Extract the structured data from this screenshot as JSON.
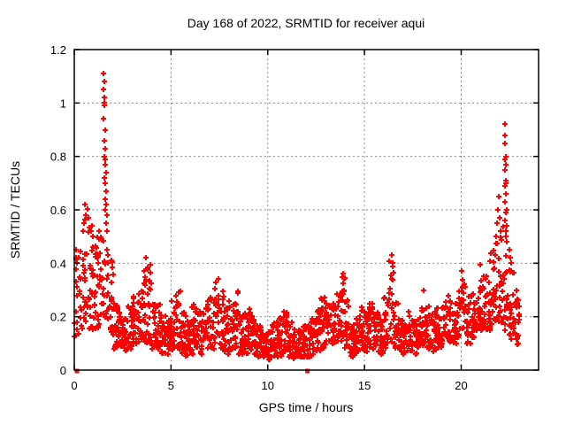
{
  "chart_data": {
    "type": "scatter",
    "title": "Day 168 of 2022, SRMTID for receiver aqui",
    "xlabel": "GPS time / hours",
    "ylabel": "SRMTID / TECUs",
    "xlim": [
      0,
      24
    ],
    "ylim": [
      0,
      1.2
    ],
    "xticks": [
      {
        "v": 0,
        "label": "0"
      },
      {
        "v": 5,
        "label": "5"
      },
      {
        "v": 10,
        "label": "10"
      },
      {
        "v": 15,
        "label": "15"
      },
      {
        "v": 20,
        "label": "20"
      }
    ],
    "yticks": [
      {
        "v": 0,
        "label": "0"
      },
      {
        "v": 0.2,
        "label": "0.2"
      },
      {
        "v": 0.4,
        "label": "0.4"
      },
      {
        "v": 0.6,
        "label": "0.6"
      },
      {
        "v": 0.8,
        "label": "0.8"
      },
      {
        "v": 1.0,
        "label": "1"
      },
      {
        "v": 1.2,
        "label": "1.2"
      }
    ],
    "grid": {
      "show": true,
      "color": "#878787",
      "dash": "2,3"
    },
    "axis_color": "#000000",
    "background": "#ffffff",
    "series": [
      {
        "name": "srmtid",
        "marker": "plus",
        "color": "#ff0000",
        "size": 7,
        "bin_width": 0.25,
        "cloud_bins": [
          [
            0.125,
            0.12,
            0.45,
            8
          ],
          [
            0.375,
            0.15,
            0.52,
            14
          ],
          [
            0.625,
            0.18,
            0.62,
            18
          ],
          [
            0.875,
            0.15,
            0.58,
            20
          ],
          [
            1.125,
            0.15,
            0.5,
            22
          ],
          [
            1.375,
            0.15,
            0.55,
            20
          ],
          [
            1.625,
            0.2,
            0.52,
            18
          ],
          [
            1.875,
            0.12,
            0.42,
            20
          ],
          [
            2.125,
            0.08,
            0.26,
            22
          ],
          [
            2.375,
            0.08,
            0.22,
            24
          ],
          [
            2.625,
            0.07,
            0.2,
            22
          ],
          [
            2.875,
            0.08,
            0.24,
            22
          ],
          [
            3.125,
            0.1,
            0.28,
            22
          ],
          [
            3.375,
            0.1,
            0.32,
            22
          ],
          [
            3.625,
            0.1,
            0.38,
            20
          ],
          [
            3.875,
            0.1,
            0.4,
            20
          ],
          [
            4.125,
            0.08,
            0.3,
            22
          ],
          [
            4.375,
            0.08,
            0.25,
            22
          ],
          [
            4.625,
            0.06,
            0.22,
            22
          ],
          [
            4.875,
            0.06,
            0.2,
            22
          ],
          [
            5.125,
            0.07,
            0.28,
            22
          ],
          [
            5.375,
            0.08,
            0.3,
            20
          ],
          [
            5.625,
            0.06,
            0.22,
            22
          ],
          [
            5.875,
            0.05,
            0.2,
            22
          ],
          [
            6.125,
            0.06,
            0.25,
            22
          ],
          [
            6.375,
            0.08,
            0.28,
            20
          ],
          [
            6.625,
            0.06,
            0.22,
            22
          ],
          [
            6.875,
            0.08,
            0.26,
            22
          ],
          [
            7.125,
            0.08,
            0.3,
            22
          ],
          [
            7.375,
            0.1,
            0.33,
            20
          ],
          [
            7.625,
            0.08,
            0.3,
            20
          ],
          [
            7.875,
            0.06,
            0.24,
            22
          ],
          [
            8.125,
            0.07,
            0.26,
            22
          ],
          [
            8.375,
            0.08,
            0.3,
            20
          ],
          [
            8.625,
            0.06,
            0.24,
            22
          ],
          [
            8.875,
            0.06,
            0.22,
            22
          ],
          [
            9.125,
            0.07,
            0.26,
            20
          ],
          [
            9.375,
            0.06,
            0.22,
            22
          ],
          [
            9.625,
            0.05,
            0.18,
            22
          ],
          [
            9.875,
            0.05,
            0.16,
            22
          ],
          [
            10.125,
            0.04,
            0.15,
            22
          ],
          [
            10.375,
            0.05,
            0.18,
            20
          ],
          [
            10.625,
            0.05,
            0.2,
            20
          ],
          [
            10.875,
            0.06,
            0.22,
            20
          ],
          [
            11.125,
            0.05,
            0.18,
            22
          ],
          [
            11.375,
            0.04,
            0.16,
            22
          ],
          [
            11.625,
            0.05,
            0.15,
            22
          ],
          [
            11.875,
            0.05,
            0.17,
            22
          ],
          [
            12.125,
            0.05,
            0.18,
            20
          ],
          [
            12.375,
            0.06,
            0.2,
            20
          ],
          [
            12.625,
            0.07,
            0.24,
            20
          ],
          [
            12.875,
            0.08,
            0.28,
            20
          ],
          [
            13.125,
            0.08,
            0.25,
            20
          ],
          [
            13.375,
            0.08,
            0.26,
            20
          ],
          [
            13.625,
            0.1,
            0.3,
            20
          ],
          [
            13.875,
            0.1,
            0.36,
            20
          ],
          [
            14.125,
            0.08,
            0.28,
            20
          ],
          [
            14.375,
            0.05,
            0.18,
            22
          ],
          [
            14.625,
            0.06,
            0.2,
            22
          ],
          [
            14.875,
            0.08,
            0.24,
            20
          ],
          [
            15.125,
            0.07,
            0.22,
            22
          ],
          [
            15.375,
            0.08,
            0.26,
            20
          ],
          [
            15.625,
            0.07,
            0.22,
            22
          ],
          [
            15.875,
            0.06,
            0.2,
            22
          ],
          [
            16.125,
            0.08,
            0.28,
            20
          ],
          [
            16.375,
            0.1,
            0.42,
            18
          ],
          [
            16.625,
            0.08,
            0.26,
            20
          ],
          [
            16.875,
            0.06,
            0.2,
            22
          ],
          [
            17.125,
            0.06,
            0.2,
            22
          ],
          [
            17.375,
            0.07,
            0.22,
            22
          ],
          [
            17.625,
            0.06,
            0.2,
            22
          ],
          [
            17.875,
            0.08,
            0.24,
            20
          ],
          [
            18.125,
            0.08,
            0.28,
            20
          ],
          [
            18.375,
            0.08,
            0.24,
            20
          ],
          [
            18.625,
            0.07,
            0.22,
            22
          ],
          [
            18.875,
            0.08,
            0.24,
            20
          ],
          [
            19.125,
            0.1,
            0.26,
            20
          ],
          [
            19.375,
            0.1,
            0.28,
            20
          ],
          [
            19.625,
            0.1,
            0.25,
            20
          ],
          [
            19.875,
            0.12,
            0.32,
            20
          ],
          [
            20.125,
            0.12,
            0.35,
            20
          ],
          [
            20.375,
            0.1,
            0.28,
            20
          ],
          [
            20.625,
            0.12,
            0.3,
            20
          ],
          [
            20.875,
            0.14,
            0.35,
            20
          ],
          [
            21.125,
            0.15,
            0.4,
            20
          ],
          [
            21.375,
            0.15,
            0.42,
            20
          ],
          [
            21.625,
            0.15,
            0.45,
            20
          ],
          [
            21.875,
            0.18,
            0.52,
            18
          ],
          [
            22.125,
            0.18,
            0.55,
            16
          ],
          [
            22.375,
            0.15,
            0.45,
            18
          ],
          [
            22.625,
            0.1,
            0.38,
            20
          ],
          [
            22.875,
            0.08,
            0.3,
            22
          ]
        ],
        "points": [
          [
            0.1,
            0.45
          ],
          [
            0.1,
            0.42
          ],
          [
            0.12,
            0.4
          ],
          [
            0.1,
            0.33
          ],
          [
            0.12,
            0.28
          ],
          [
            0.1,
            0.22
          ],
          [
            0.13,
            0.18
          ],
          [
            0.11,
            0.13
          ],
          [
            0.45,
            0.52
          ],
          [
            0.52,
            0.55
          ],
          [
            0.55,
            0.62
          ],
          [
            0.6,
            0.58
          ],
          [
            0.75,
            0.57
          ],
          [
            0.85,
            0.52
          ],
          [
            0.95,
            0.5
          ],
          [
            1.52,
            1.11
          ],
          [
            1.55,
            1.08
          ],
          [
            1.53,
            1.05
          ],
          [
            1.56,
            1.02
          ],
          [
            1.54,
            1.0
          ],
          [
            1.57,
            0.99
          ],
          [
            1.52,
            0.94
          ],
          [
            1.58,
            0.9
          ],
          [
            1.55,
            0.86
          ],
          [
            1.6,
            0.83
          ],
          [
            1.57,
            0.8
          ],
          [
            1.62,
            0.79
          ],
          [
            1.59,
            0.77
          ],
          [
            1.63,
            0.74
          ],
          [
            1.56,
            0.72
          ],
          [
            1.61,
            0.7
          ],
          [
            1.64,
            0.67
          ],
          [
            1.58,
            0.64
          ],
          [
            1.66,
            0.62
          ],
          [
            1.62,
            0.6
          ],
          [
            1.68,
            0.58
          ],
          [
            1.65,
            0.55
          ],
          [
            1.7,
            0.52
          ],
          [
            3.7,
            0.42
          ],
          [
            7.45,
            0.34
          ],
          [
            13.9,
            0.36
          ],
          [
            13.95,
            0.34
          ],
          [
            16.4,
            0.43
          ],
          [
            16.45,
            0.4
          ],
          [
            18.05,
            0.3
          ],
          [
            20.0,
            0.37
          ],
          [
            21.8,
            0.5
          ],
          [
            21.85,
            0.55
          ],
          [
            21.9,
            0.6
          ],
          [
            21.95,
            0.65
          ],
          [
            21.98,
            0.57
          ],
          [
            22.05,
            0.52
          ],
          [
            22.25,
            0.92
          ],
          [
            22.28,
            0.88
          ],
          [
            22.24,
            0.85
          ],
          [
            22.3,
            0.8
          ],
          [
            22.27,
            0.79
          ],
          [
            22.32,
            0.77
          ],
          [
            22.26,
            0.75
          ],
          [
            22.29,
            0.71
          ],
          [
            22.33,
            0.7
          ],
          [
            22.25,
            0.69
          ],
          [
            22.31,
            0.66
          ],
          [
            22.28,
            0.63
          ],
          [
            22.34,
            0.6
          ],
          [
            22.3,
            0.59
          ],
          [
            22.27,
            0.56
          ],
          [
            22.35,
            0.54
          ],
          [
            22.31,
            0.52
          ],
          [
            22.29,
            0.5
          ],
          [
            22.36,
            0.48
          ],
          [
            22.5,
            0.45
          ],
          [
            22.55,
            0.42
          ],
          [
            22.6,
            0.4
          ]
        ]
      },
      {
        "name": "zero-squares",
        "marker": "square",
        "color": "#ff0000",
        "size": 5,
        "points": [
          [
            0.14,
            0
          ],
          [
            12.05,
            0
          ]
        ]
      }
    ]
  }
}
